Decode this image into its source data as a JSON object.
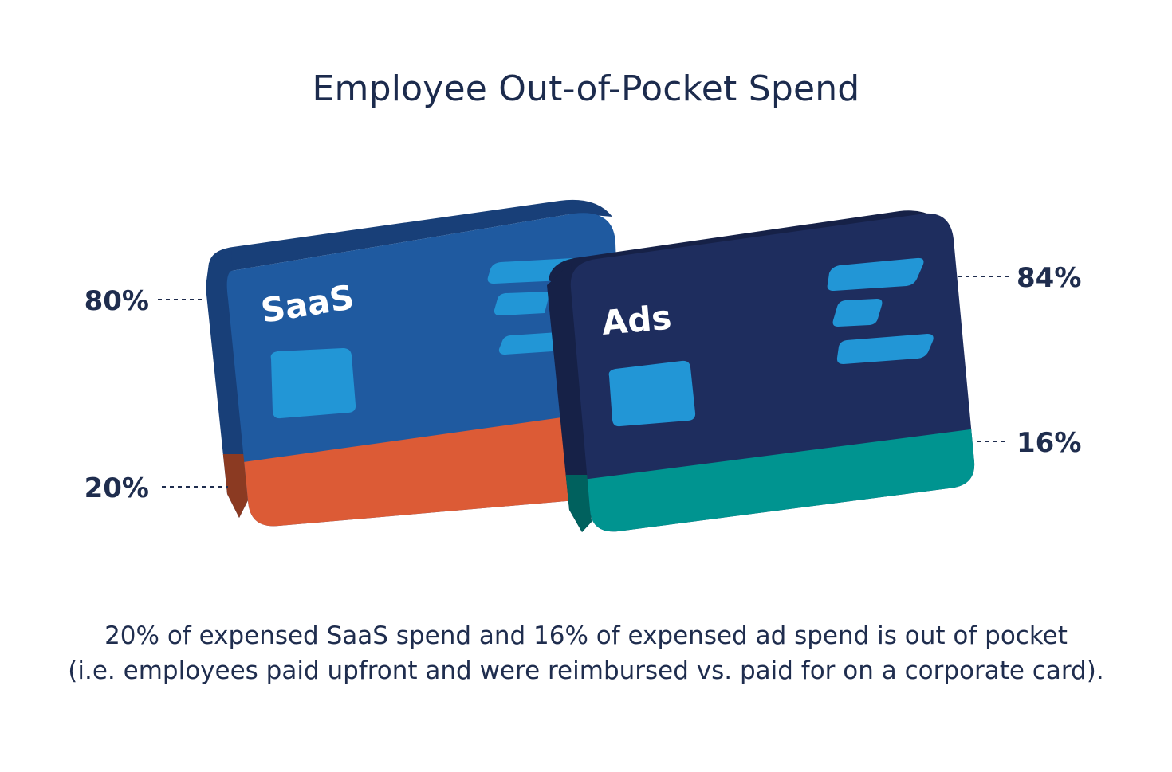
{
  "title": "Employee Out-of-Pocket Spend",
  "chart_data": {
    "type": "bar",
    "stacked": true,
    "categories": [
      "SaaS",
      "Ads"
    ],
    "series": [
      {
        "values": [
          80,
          84
        ]
      },
      {
        "values": [
          20,
          16
        ]
      }
    ],
    "labels": {
      "saas_top": "80%",
      "saas_bottom": "20%",
      "ads_top": "84%",
      "ads_bottom": "16%"
    },
    "colors": {
      "saas_top": "#1f5aa0",
      "saas_top_side": "#183f78",
      "saas_bottom": "#dc5b36",
      "saas_bottom_side": "#8b3a22",
      "ads_top": "#1e2d5e",
      "ads_top_side": "#162147",
      "ads_bottom": "#009490",
      "ads_bottom_side": "#00615e",
      "accent": "#2296d6"
    }
  },
  "caption": {
    "line1": "20% of expensed SaaS spend and 16% of expensed ad spend is out of pocket",
    "line2": "(i.e. employees paid upfront and were reimbursed vs. paid for on a corporate card)."
  }
}
